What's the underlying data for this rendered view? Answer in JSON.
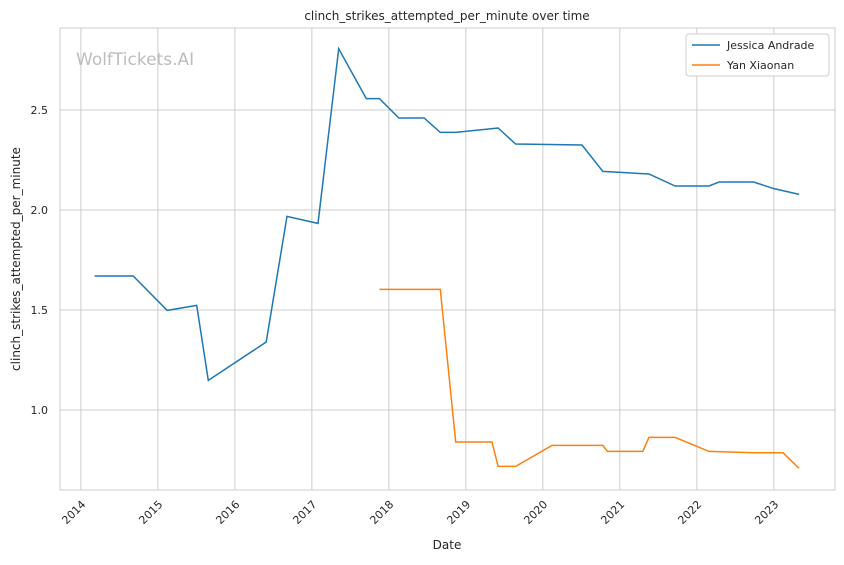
{
  "chart_data": {
    "type": "line",
    "title": "clinch_strikes_attempted_per_minute over time",
    "xlabel": "Date",
    "ylabel": "clinch_strikes_attempted_per_minute",
    "watermark": "WolfTickets.AI",
    "xlim": [
      "2013-09-24",
      "2023-10-18"
    ],
    "ylim": [
      0.6,
      2.91
    ],
    "x_ticks": [
      "2014",
      "2015",
      "2016",
      "2017",
      "2018",
      "2019",
      "2020",
      "2021",
      "2022",
      "2023"
    ],
    "y_ticks": [
      "1.0",
      "1.5",
      "2.0",
      "2.5"
    ],
    "grid": true,
    "legend_position": "top-right",
    "series": [
      {
        "name": "Jessica Andrade",
        "color": "#1f77b4",
        "x": [
          "2014-03-07",
          "2014-09-06",
          "2015-02-14",
          "2015-07-04",
          "2015-08-28",
          "2016-05-29",
          "2016-09-05",
          "2017-01-30",
          "2017-05-08",
          "2017-09-16",
          "2017-11-17",
          "2018-02-17",
          "2018-06-17",
          "2018-09-02",
          "2018-11-14",
          "2019-06-03",
          "2019-08-25",
          "2020-07-05",
          "2020-10-12",
          "2021-05-19",
          "2021-09-20",
          "2022-02-28",
          "2022-04-16",
          "2022-09-27",
          "2022-12-28",
          "2023-05-01"
        ],
        "y": [
          1.67,
          1.67,
          1.498,
          1.523,
          1.148,
          1.34,
          1.968,
          1.933,
          2.806,
          2.557,
          2.557,
          2.46,
          2.46,
          2.388,
          2.388,
          2.41,
          2.33,
          2.325,
          2.193,
          2.18,
          2.12,
          2.12,
          2.14,
          2.14,
          2.108,
          2.078
        ]
      },
      {
        "name": "Yan Xiaonan",
        "color": "#ff7f0e",
        "x": [
          "2017-11-17",
          "2018-09-02",
          "2018-11-14",
          "2019-05-05",
          "2019-06-03",
          "2019-08-25",
          "2020-02-14",
          "2020-10-12",
          "2020-11-03",
          "2021-04-20",
          "2021-05-19",
          "2021-09-20",
          "2022-02-28",
          "2022-09-27",
          "2023-02-14",
          "2023-05-01"
        ],
        "y": [
          1.603,
          1.603,
          0.84,
          0.84,
          0.718,
          0.718,
          0.823,
          0.823,
          0.793,
          0.793,
          0.863,
          0.863,
          0.793,
          0.786,
          0.786,
          0.708
        ]
      }
    ]
  }
}
